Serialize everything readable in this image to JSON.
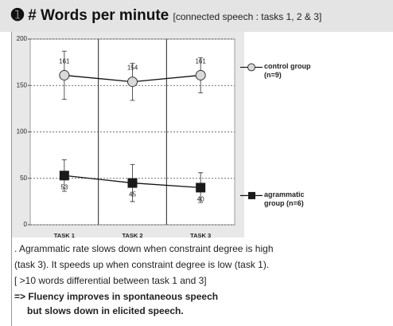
{
  "chart_data": {
    "type": "line",
    "title": "# Words per minute",
    "subtitle": "[connected speech : tasks 1, 2 & 3]",
    "categories": [
      "TASK 1",
      "TASK 2",
      "TASK 3"
    ],
    "series": [
      {
        "name": "control group (n=9)",
        "color": "#d9d9d9",
        "marker": "circle",
        "values": [
          161,
          154,
          161
        ],
        "errors": [
          26,
          20,
          19
        ]
      },
      {
        "name": "agrammatic group (n=6)",
        "color": "#1a1a1a",
        "marker": "square",
        "values": [
          53,
          45,
          40
        ],
        "errors": [
          17,
          20,
          16
        ]
      }
    ],
    "ylim": [
      0,
      200
    ],
    "yticks": [
      0,
      50,
      100,
      150,
      200
    ],
    "grid": true
  },
  "notes": [
    ". Agrammatic rate slows down when constraint degree is high",
    "(task 3). It speeds up when constraint degree is low (task 1).",
    "[ >10 words differential between task 1 and 3]"
  ],
  "conclusion": [
    "=> Fluency improves in spontaneous speech",
    "but slows down in elicited speech."
  ]
}
